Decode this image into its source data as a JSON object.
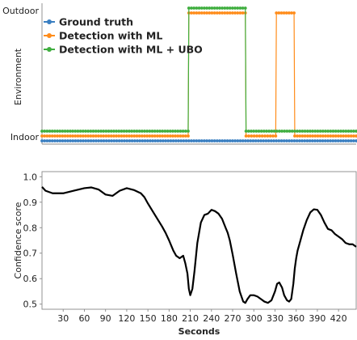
{
  "chart_data": [
    {
      "type": "line",
      "ylabel": "Environment",
      "y_tick_labels": [
        "Indoor",
        "Outdoor"
      ],
      "x_range": [
        0,
        445
      ],
      "legend_position": "top-left",
      "series": [
        {
          "name": "Ground truth",
          "color": "#3a7fc1",
          "segments": [
            {
              "x_start": 0,
              "x_end": 445,
              "state": "Indoor"
            }
          ]
        },
        {
          "name": "Detection with ML",
          "color": "#ff8c1a",
          "segments": [
            {
              "x_start": 0,
              "x_end": 207,
              "state": "Indoor"
            },
            {
              "x_start": 208,
              "x_end": 288,
              "state": "Outdoor"
            },
            {
              "x_start": 289,
              "x_end": 331,
              "state": "Indoor"
            },
            {
              "x_start": 332,
              "x_end": 357,
              "state": "Outdoor"
            },
            {
              "x_start": 358,
              "x_end": 445,
              "state": "Indoor"
            }
          ]
        },
        {
          "name": "Detection with ML + UBO",
          "color": "#3fae3f",
          "segments": [
            {
              "x_start": 0,
              "x_end": 207,
              "state": "Indoor"
            },
            {
              "x_start": 208,
              "x_end": 288,
              "state": "Outdoor"
            },
            {
              "x_start": 289,
              "x_end": 445,
              "state": "Indoor"
            }
          ]
        }
      ]
    },
    {
      "type": "line",
      "xlabel": "Seconds",
      "ylabel": "Confidence score",
      "xlim": [
        0,
        445
      ],
      "ylim": [
        0.48,
        1.02
      ],
      "x_ticks": [
        30,
        60,
        90,
        120,
        150,
        180,
        210,
        240,
        270,
        300,
        330,
        360,
        390,
        420
      ],
      "y_ticks": [
        "0.5",
        "0.6",
        "0.7",
        "0.8",
        "0.9",
        "1.0"
      ],
      "series": [
        {
          "color": "#000000",
          "x": [
            0,
            5,
            15,
            30,
            45,
            60,
            70,
            80,
            90,
            100,
            110,
            120,
            130,
            140,
            145,
            150,
            160,
            170,
            175,
            180,
            183,
            186,
            190,
            195,
            200,
            203,
            206,
            208,
            210,
            213,
            216,
            220,
            225,
            230,
            235,
            240,
            245,
            250,
            255,
            260,
            263,
            266,
            270,
            275,
            280,
            285,
            288,
            291,
            295,
            300,
            305,
            310,
            315,
            320,
            325,
            330,
            333,
            336,
            340,
            343,
            347,
            350,
            353,
            356,
            358,
            360,
            362,
            365,
            370,
            375,
            380,
            385,
            390,
            395,
            400,
            405,
            410,
            415,
            420,
            425,
            430,
            435,
            440,
            445
          ],
          "y": [
            0.96,
            0.945,
            0.935,
            0.935,
            0.945,
            0.955,
            0.958,
            0.95,
            0.93,
            0.925,
            0.945,
            0.955,
            0.948,
            0.935,
            0.92,
            0.895,
            0.85,
            0.805,
            0.78,
            0.75,
            0.73,
            0.71,
            0.69,
            0.68,
            0.69,
            0.66,
            0.62,
            0.56,
            0.535,
            0.56,
            0.63,
            0.74,
            0.82,
            0.85,
            0.855,
            0.87,
            0.865,
            0.855,
            0.835,
            0.8,
            0.78,
            0.75,
            0.695,
            0.62,
            0.55,
            0.51,
            0.505,
            0.52,
            0.535,
            0.535,
            0.53,
            0.52,
            0.51,
            0.505,
            0.515,
            0.55,
            0.58,
            0.585,
            0.565,
            0.535,
            0.515,
            0.51,
            0.52,
            0.58,
            0.64,
            0.68,
            0.71,
            0.74,
            0.79,
            0.83,
            0.86,
            0.872,
            0.87,
            0.85,
            0.82,
            0.795,
            0.79,
            0.775,
            0.765,
            0.755,
            0.74,
            0.735,
            0.735,
            0.725
          ]
        }
      ]
    }
  ]
}
